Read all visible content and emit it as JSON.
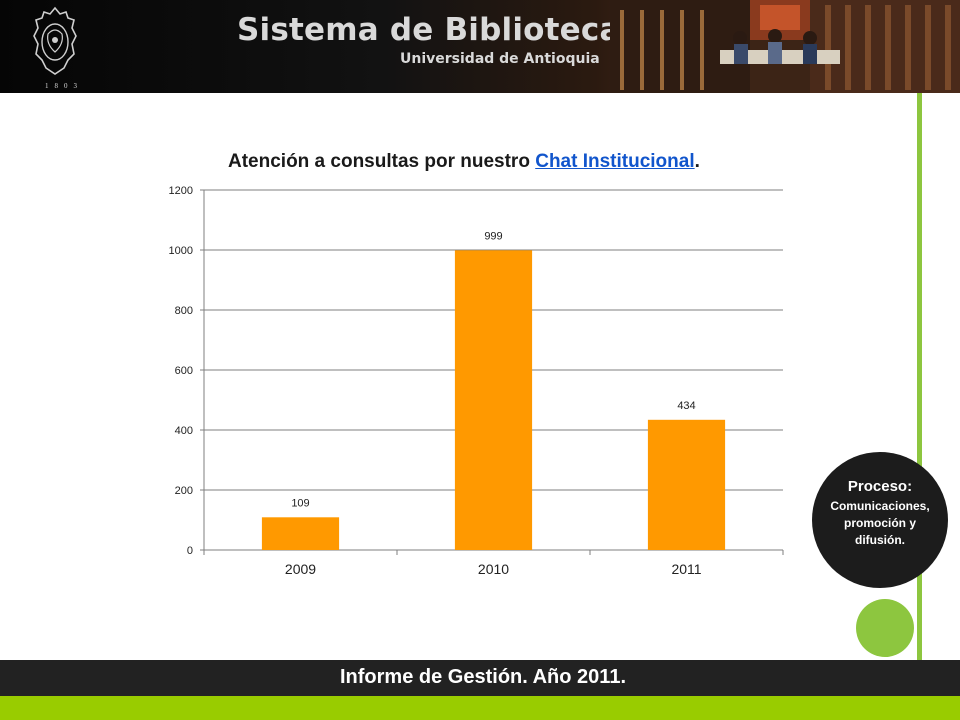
{
  "header": {
    "title": "Sistema de Bibliotecas",
    "subtitle": "Universidad de Antioquia",
    "seal_year": "1803"
  },
  "chart_data": {
    "type": "bar",
    "title_prefix": "Atención a consultas por nuestro ",
    "title_link": "Chat Institucional",
    "title_suffix": ".",
    "categories": [
      "2009",
      "2010",
      "2011"
    ],
    "values": [
      109,
      999,
      434
    ],
    "data_labels": [
      "109",
      "999",
      "434"
    ],
    "ylim": [
      0,
      1200
    ],
    "yticks": [
      "0",
      "200",
      "400",
      "600",
      "800",
      "1000",
      "1200"
    ],
    "ytick_values": [
      0,
      200,
      400,
      600,
      800,
      1000,
      1200
    ],
    "bar_color": "#ff9900",
    "grid": true,
    "legend": "none",
    "xlabel": "",
    "ylabel": ""
  },
  "process": {
    "label": "Proceso:",
    "text": "Comunicaciones, promoción y difusión."
  },
  "footer": {
    "text": "Informe de Gestión. Año 2011."
  },
  "colors": {
    "accent_green": "#8dc63f",
    "footer_green": "#99cc00",
    "bar": "#ff9900"
  }
}
